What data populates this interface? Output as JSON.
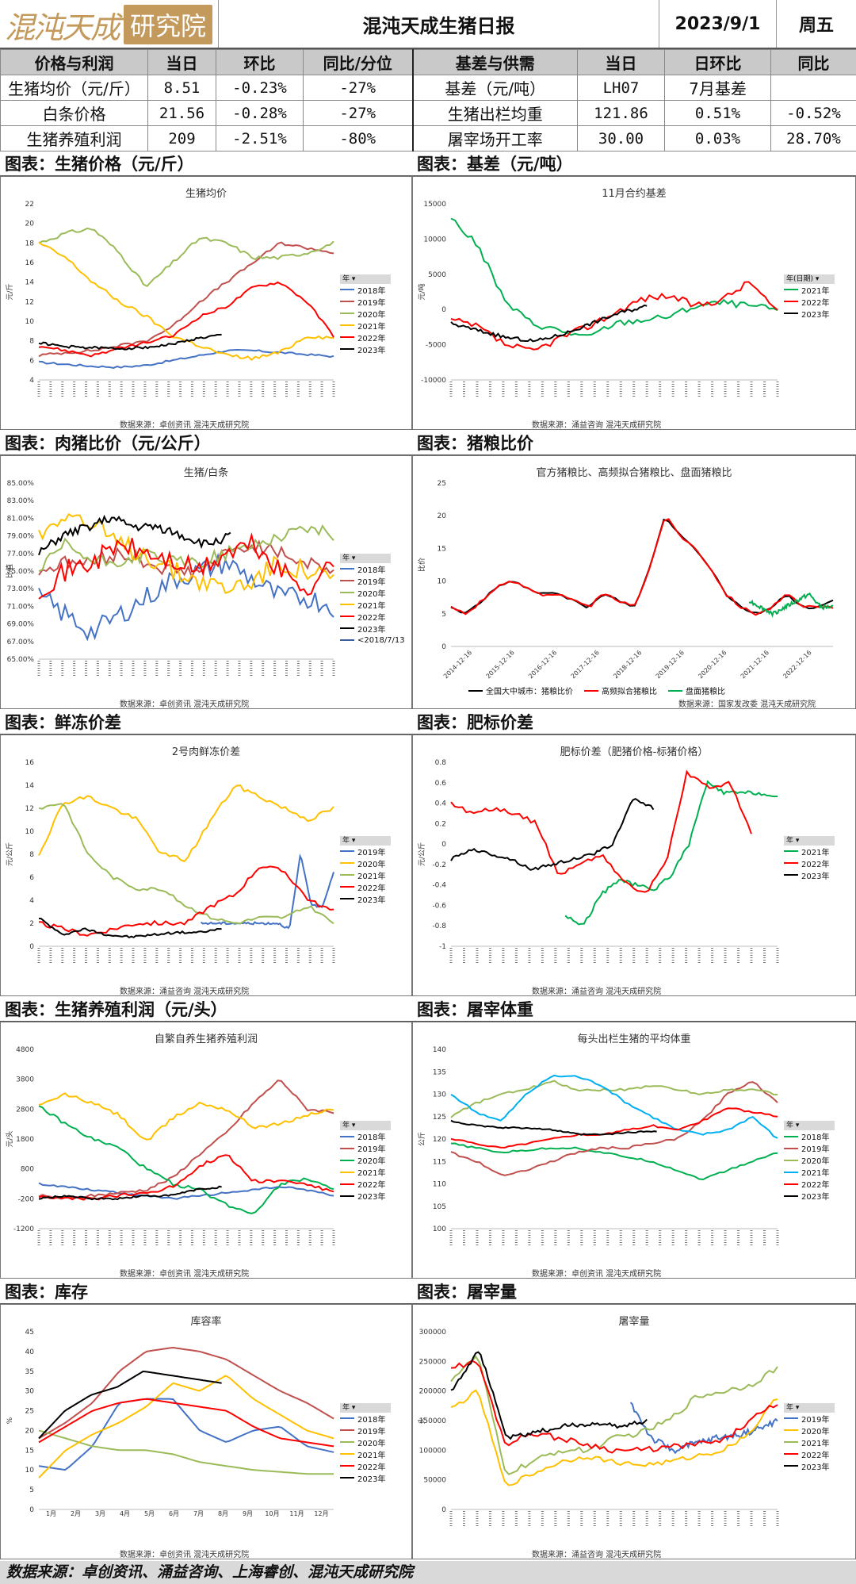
{
  "header": {
    "logo_text": "混沌天成",
    "logo_badge": "研究院",
    "title": "混沌天成生猪日报",
    "date": "2023/9/1",
    "weekday": "周五"
  },
  "table": {
    "headers": [
      "价格与利润",
      "当日",
      "环比",
      "同比/分位",
      "基差与供需",
      "当日",
      "日环比",
      "同比"
    ],
    "rows": [
      [
        "生猪均价（元/斤）",
        "8.51",
        "-0.23%",
        "-27%",
        "基差（元/吨）",
        "LH07",
        "7月基差",
        ""
      ],
      [
        "白条价格",
        "21.56",
        "-0.28%",
        "-27%",
        "生猪出栏均重",
        "121.86",
        "0.51%",
        "-0.52%"
      ],
      [
        "生猪养殖利润",
        "209",
        "-2.51%",
        "-80%",
        "屠宰场开工率",
        "30.00",
        "0.03%",
        "28.70%"
      ]
    ]
  },
  "panels": {
    "p1": {
      "title": "图表：生猪价格（元/斤）",
      "chart_title": "生猪均价",
      "ylabel": "元/斤",
      "source": "数据来源：卓创资讯  混沌天成研究院",
      "legend_head": "年",
      "legend": [
        "2018年",
        "2019年",
        "2020年",
        "2021年",
        "2022年",
        "2023年"
      ],
      "yticks": [
        "22",
        "20",
        "18",
        "16",
        "14",
        "12",
        "10",
        "8",
        "6",
        "4"
      ]
    },
    "p2": {
      "title": "图表：基差（元/吨）",
      "chart_title": "11月合约基差",
      "ylabel": "元/吨",
      "source": "数据来源：涌益咨询  混沌天成研究院",
      "legend_head": "年(日期)",
      "legend": [
        "2021年",
        "2022年",
        "2023年"
      ],
      "yticks": [
        "15000",
        "10000",
        "5000",
        "0",
        "-5000",
        "-10000"
      ]
    },
    "p3": {
      "title": "图表：肉猪比价（元/公斤）",
      "chart_title": "生猪/白条",
      "ylabel": "比值",
      "source": "数据来源：卓创资讯  混沌天成研究院",
      "legend_head": "年",
      "legend": [
        "2018年",
        "2019年",
        "2020年",
        "2021年",
        "2022年",
        "2023年",
        "<2018/7/13"
      ],
      "yticks": [
        "85.00%",
        "83.00%",
        "81.00%",
        "79.00%",
        "77.00%",
        "75.00%",
        "73.00%",
        "71.00%",
        "69.00%",
        "67.00%",
        "65.00%"
      ]
    },
    "p4": {
      "title": "图表：猪粮比价",
      "chart_title": "官方猪粮比、高频拟合猪粮比、盘面猪粮比",
      "ylabel": "比价",
      "source": "数据来源：国家发改委  混沌天成研究院",
      "legend": [
        "全国大中城市：猪粮比价",
        "高频拟合猪粮比",
        "盘面猪粮比"
      ],
      "yticks": [
        "25",
        "20",
        "15",
        "10",
        "5",
        "0"
      ],
      "xticks": [
        "2014-12-16",
        "2015-12-16",
        "2016-12-16",
        "2017-12-16",
        "2018-12-16",
        "2019-12-16",
        "2020-12-16",
        "2021-12-16",
        "2022-12-16"
      ]
    },
    "p5": {
      "title": "图表：鲜冻价差",
      "chart_title": "2号肉鲜冻价差",
      "ylabel": "元/公斤",
      "source": "数据来源：涌益咨询  混沌天成研究院",
      "legend_head": "年",
      "legend": [
        "2019年",
        "2020年",
        "2021年",
        "2022年",
        "2023年"
      ],
      "yticks": [
        "16",
        "14",
        "12",
        "10",
        "8",
        "6",
        "4",
        "2",
        "0"
      ]
    },
    "p6": {
      "title": "图表：肥标价差",
      "chart_title": "肥标价差（肥猪价格-标猪价格）",
      "ylabel": "元/公斤",
      "source": "数据来源：涌益咨询  混沌天成研究院",
      "legend_head": "年",
      "legend": [
        "2021年",
        "2022年",
        "2023年"
      ],
      "yticks": [
        "0.8",
        "0.6",
        "0.4",
        "0.2",
        "0",
        "-0.2",
        "-0.4",
        "-0.6",
        "-0.8",
        "-1"
      ]
    },
    "p7": {
      "title": "图表：生猪养殖利润（元/头）",
      "chart_title": "自繁自养生猪养殖利润",
      "ylabel": "元/头",
      "source": "数据来源：卓创资讯  混沌天成研究院",
      "legend_head": "年",
      "legend": [
        "2018年",
        "2019年",
        "2020年",
        "2021年",
        "2022年",
        "2023年"
      ],
      "yticks": [
        "4800",
        "3800",
        "2800",
        "1800",
        "800",
        "-200",
        "-1200"
      ]
    },
    "p8": {
      "title": "图表：屠宰体重",
      "chart_title": "每头出栏生猪的平均体重",
      "ylabel": "公斤",
      "source": "数据来源：卓创资讯  混沌天成研究院",
      "legend_head": "年",
      "legend": [
        "2018年",
        "2019年",
        "2020年",
        "2021年",
        "2022年",
        "2023年"
      ],
      "yticks": [
        "140",
        "135",
        "130",
        "125",
        "120",
        "115",
        "110",
        "105",
        "100"
      ]
    },
    "p9": {
      "title": "图表：库存",
      "chart_title": "库容率",
      "ylabel": "%",
      "source": "数据来源：卓创资讯  混沌天成研究院",
      "legend_head": "年",
      "legend": [
        "2018年",
        "2019年",
        "2020年",
        "2021年",
        "2022年",
        "2023年"
      ],
      "yticks": [
        "45",
        "40",
        "35",
        "30",
        "25",
        "20",
        "15",
        "10",
        "5",
        "0"
      ],
      "xticks": [
        "1月",
        "2月",
        "3月",
        "4月",
        "5月",
        "6月",
        "7月",
        "8月",
        "9月",
        "10月",
        "11月",
        "12月"
      ]
    },
    "p10": {
      "title": "图表：屠宰量",
      "chart_title": "屠宰量",
      "ylabel": "头",
      "source": "数据来源：涌益咨询  混沌天成研究院",
      "legend_head": "年",
      "legend": [
        "2019年",
        "2020年",
        "2021年",
        "2022年",
        "2023年"
      ],
      "yticks": [
        "300000",
        "250000",
        "200000",
        "150000",
        "100000",
        "50000",
        "0"
      ]
    }
  },
  "colors": {
    "2018": "#4472c4",
    "2019": "#c0504d",
    "2020": "#9bbb59",
    "2021": "#ffc000",
    "2022": "#ff0000",
    "2023": "#000000",
    "green": "#00b050",
    "blue2": "#00b0f0",
    "purple": "#7030a0",
    "lb": "#3d5d9b"
  },
  "footer": "数据来源：卓创资讯、涌益咨询、上海睿创、混沌天成研究院"
}
